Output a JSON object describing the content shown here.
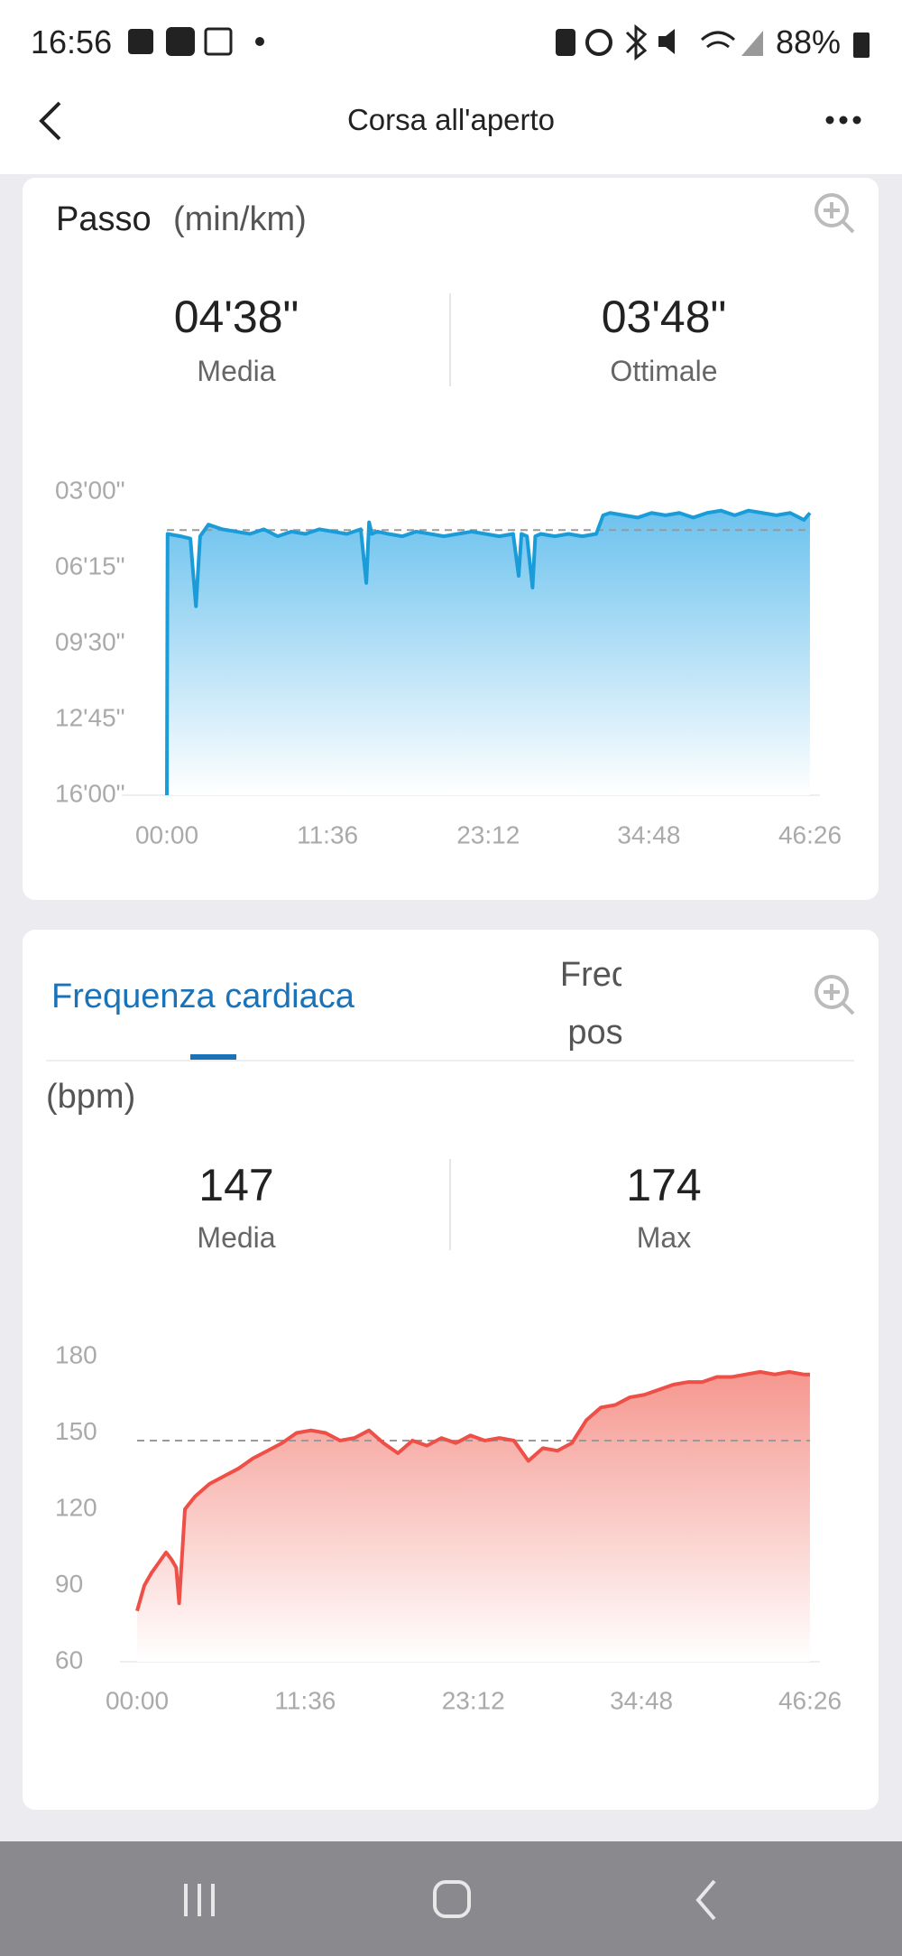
{
  "status_bar": {
    "time": "16:56",
    "battery": "88%"
  },
  "header": {
    "title": "Corsa all'aperto"
  },
  "tabs": [
    {
      "label": "Frequenza cardiaca"
    },
    {
      "lines": [
        "Freq",
        "pos"
      ]
    }
  ],
  "chart_data": [
    {
      "type": "area",
      "title": "Passo",
      "unit": "(min/km)",
      "stats": [
        {
          "value": "04'38\"",
          "label": "Media"
        },
        {
          "value": "03'48\"",
          "label": "Ottimale"
        }
      ],
      "color": "#1a9cd8",
      "y_inverted": true,
      "reference_line": 4.633,
      "xlim": [
        0,
        46.433
      ],
      "ylim": [
        3,
        16
      ],
      "xticks": [
        {
          "value": 0,
          "label": "00:00"
        },
        {
          "value": 11.6,
          "label": "11:36"
        },
        {
          "value": 23.2,
          "label": "23:12"
        },
        {
          "value": 34.8,
          "label": "34:48"
        },
        {
          "value": 46.433,
          "label": "46:26"
        }
      ],
      "yticks": [
        {
          "value": 3,
          "label": "03'00\""
        },
        {
          "value": 6.25,
          "label": "06'15\""
        },
        {
          "value": 9.5,
          "label": "09'30\""
        },
        {
          "value": 12.75,
          "label": "12'45\""
        },
        {
          "value": 16,
          "label": "16'00\""
        }
      ],
      "x": [
        0,
        0.05,
        1,
        1.7,
        1.9,
        2.1,
        2.4,
        3,
        4,
        5,
        6,
        7,
        8,
        9,
        10,
        11,
        12,
        13,
        14,
        14.4,
        14.6,
        14.8,
        15.2,
        16,
        17,
        18,
        19,
        20,
        21,
        22,
        23,
        24,
        25,
        25.4,
        25.6,
        26,
        26.4,
        26.6,
        27,
        28,
        29,
        30,
        31,
        31.5,
        32,
        33,
        34,
        35,
        36,
        37,
        38,
        39,
        40,
        41,
        42,
        43,
        44,
        45,
        46,
        46.43
      ],
      "values": [
        16,
        4.8,
        4.9,
        5.0,
        6.5,
        7.9,
        4.9,
        4.4,
        4.6,
        4.7,
        4.8,
        4.6,
        4.9,
        4.7,
        4.8,
        4.6,
        4.7,
        4.8,
        4.6,
        6.9,
        4.3,
        4.8,
        4.7,
        4.8,
        4.9,
        4.7,
        4.8,
        4.9,
        4.8,
        4.7,
        4.8,
        4.9,
        4.8,
        6.6,
        4.8,
        4.9,
        7.1,
        4.9,
        4.8,
        4.9,
        4.8,
        4.9,
        4.8,
        4.0,
        3.9,
        4.0,
        4.1,
        3.9,
        4.0,
        3.9,
        4.1,
        3.9,
        3.8,
        4.0,
        3.8,
        3.9,
        4.0,
        3.9,
        4.2,
        3.9
      ]
    },
    {
      "type": "area",
      "unit": "(bpm)",
      "stats": [
        {
          "value": "147",
          "label": "Media"
        },
        {
          "value": "174",
          "label": "Max"
        }
      ],
      "color": "#ee4f47",
      "reference_line": 147,
      "xlim": [
        0,
        46.433
      ],
      "ylim": [
        60,
        180
      ],
      "xticks": [
        {
          "value": 0,
          "label": "00:00"
        },
        {
          "value": 11.6,
          "label": "11:36"
        },
        {
          "value": 23.2,
          "label": "23:12"
        },
        {
          "value": 34.8,
          "label": "34:48"
        },
        {
          "value": 46.433,
          "label": "46:26"
        }
      ],
      "yticks": [
        60,
        90,
        120,
        150,
        180
      ],
      "x": [
        0,
        0.5,
        1,
        1.5,
        2,
        2.4,
        2.7,
        2.9,
        3.3,
        4,
        5,
        6,
        7,
        8,
        9,
        10,
        11,
        12,
        13,
        14,
        15,
        16,
        17,
        18,
        19,
        20,
        21,
        22,
        23,
        24,
        25,
        26,
        27,
        28,
        29,
        30,
        31,
        32,
        33,
        34,
        35,
        36,
        37,
        38,
        39,
        40,
        41,
        42,
        43,
        44,
        45,
        46,
        46.43
      ],
      "values": [
        80,
        90,
        95,
        99,
        103,
        100,
        97,
        83,
        120,
        125,
        130,
        133,
        136,
        140,
        143,
        146,
        150,
        151,
        150,
        147,
        148,
        151,
        146,
        142,
        147,
        145,
        148,
        146,
        149,
        147,
        148,
        147,
        139,
        144,
        143,
        146,
        155,
        160,
        161,
        164,
        165,
        167,
        169,
        170,
        170,
        172,
        172,
        173,
        174,
        173,
        174,
        173,
        173
      ]
    }
  ]
}
